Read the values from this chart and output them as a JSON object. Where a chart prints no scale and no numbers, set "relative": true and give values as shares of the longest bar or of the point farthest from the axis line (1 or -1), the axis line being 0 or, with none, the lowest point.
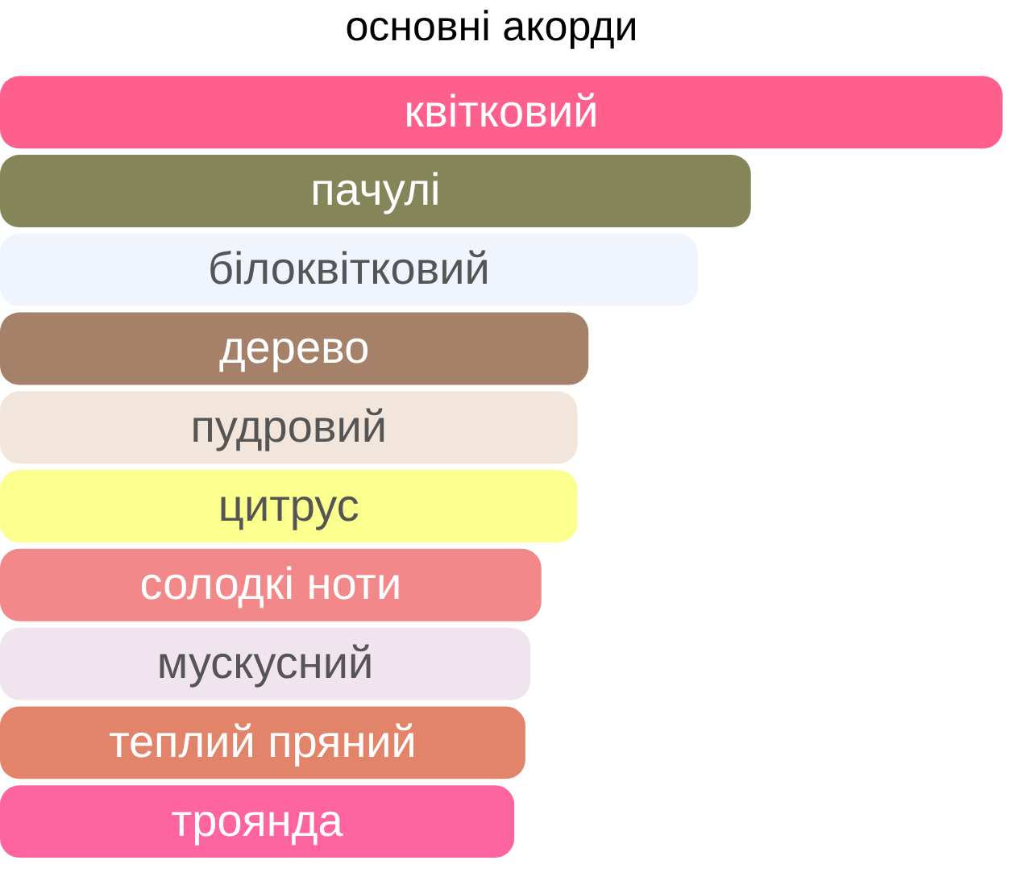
{
  "chart_data": {
    "type": "bar",
    "orientation": "horizontal",
    "relative": true,
    "title": "основні акорди",
    "categories": [
      "квітковий",
      "пачулі",
      "білоквітковий",
      "дерево",
      "пудровий",
      "цитрус",
      "солодкі ноти",
      "мускусний",
      "теплий пряний",
      "троянда"
    ],
    "values": [
      1,
      0.749,
      0.696,
      0.587,
      0.576,
      0.576,
      0.54,
      0.529,
      0.524,
      0.513
    ],
    "colors": [
      "#ff5f8d",
      "#85855a",
      "#f0f4fc",
      "#a5816a",
      "#f2e6dc",
      "#fbff8d",
      "#f3888a",
      "#f0e4ee",
      "#e2846a",
      "#fe65a0"
    ],
    "legend": false
  }
}
